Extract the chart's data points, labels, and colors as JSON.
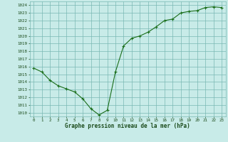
{
  "x": [
    0,
    1,
    2,
    3,
    4,
    5,
    6,
    7,
    8,
    9,
    10,
    11,
    12,
    13,
    14,
    15,
    16,
    17,
    18,
    19,
    20,
    21,
    22,
    23
  ],
  "y": [
    1015.8,
    1015.3,
    1014.2,
    1013.5,
    1013.1,
    1012.7,
    1011.8,
    1010.5,
    1009.7,
    1010.3,
    1015.3,
    1018.7,
    1019.7,
    1020.0,
    1020.5,
    1021.2,
    1022.0,
    1022.2,
    1023.0,
    1023.2,
    1023.3,
    1023.7,
    1023.8,
    1023.7
  ],
  "ylim": [
    1009.5,
    1024.5
  ],
  "xlim": [
    -0.5,
    23.5
  ],
  "yticks": [
    1010,
    1011,
    1012,
    1013,
    1014,
    1015,
    1016,
    1017,
    1018,
    1019,
    1020,
    1021,
    1022,
    1023,
    1024
  ],
  "xticks": [
    0,
    1,
    2,
    3,
    4,
    5,
    6,
    7,
    8,
    9,
    10,
    11,
    12,
    13,
    14,
    15,
    16,
    17,
    18,
    19,
    20,
    21,
    22,
    23
  ],
  "line_color": "#1a6e1a",
  "marker": "+",
  "bg_color": "#c8ebe8",
  "grid_color": "#7ab8b3",
  "axis_label_color": "#1a4a1a",
  "tick_label_color": "#1a4a1a",
  "xlabel": "Graphe pression niveau de la mer (hPa)"
}
